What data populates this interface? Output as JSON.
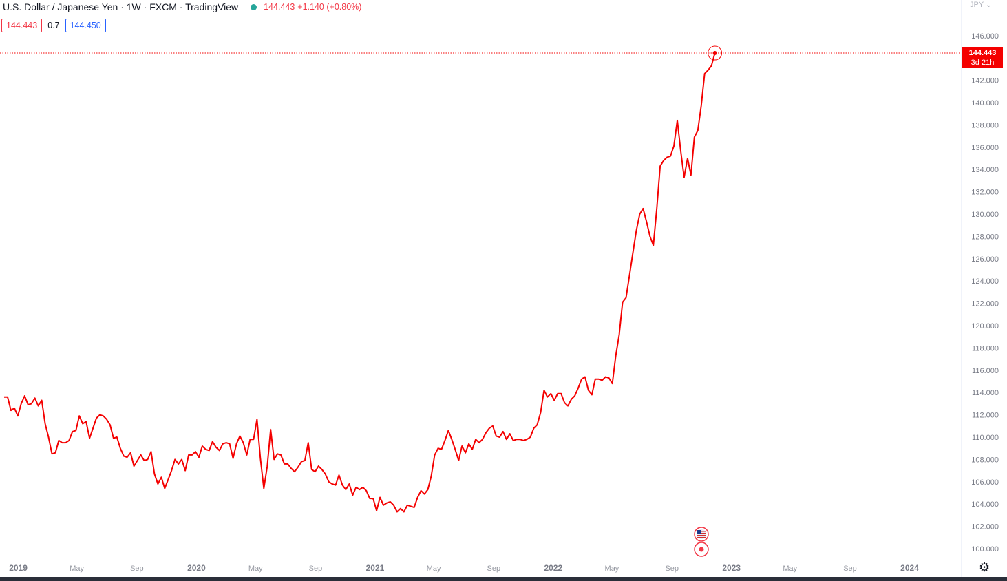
{
  "header": {
    "symbol_title": "U.S. Dollar / Japanese Yen · 1W · FXCM · TradingView",
    "last_price": "144.443",
    "change": "+1.140 (+0.80%)",
    "bid": "144.443",
    "spread": "0.7",
    "ask": "144.450"
  },
  "price_axis": {
    "currency": "JPY",
    "current_price_label": "144.443",
    "countdown_label": "3d 21h"
  },
  "colors": {
    "line": "#f40000",
    "bid": "#f23645",
    "ask": "#2962ff",
    "live_dot": "#26a69a"
  },
  "icons": [
    "us-flag-icon",
    "event-dot-icon",
    "gear-icon"
  ],
  "chart_data": {
    "type": "line",
    "title": "U.S. Dollar / Japanese Yen · 1W · FXCM · TradingView",
    "xlabel": "",
    "ylabel": "",
    "ylim": [
      99,
      147
    ],
    "xlim": [
      "2018-12-03",
      "2024-04-15"
    ],
    "grid": false,
    "y_ticks": [
      "100.000",
      "102.000",
      "104.000",
      "106.000",
      "108.000",
      "110.000",
      "112.000",
      "114.000",
      "116.000",
      "118.000",
      "120.000",
      "122.000",
      "124.000",
      "126.000",
      "128.000",
      "130.000",
      "132.000",
      "134.000",
      "136.000",
      "138.000",
      "140.000",
      "142.000",
      "146.000"
    ],
    "x_ticks": [
      {
        "label": "2019",
        "date": "2019-01-01"
      },
      {
        "label": "May",
        "date": "2019-05-01"
      },
      {
        "label": "Sep",
        "date": "2019-09-01"
      },
      {
        "label": "2020",
        "date": "2020-01-01"
      },
      {
        "label": "May",
        "date": "2020-05-01"
      },
      {
        "label": "Sep",
        "date": "2020-09-01"
      },
      {
        "label": "2021",
        "date": "2021-01-01"
      },
      {
        "label": "May",
        "date": "2021-05-01"
      },
      {
        "label": "Sep",
        "date": "2021-09-01"
      },
      {
        "label": "2022",
        "date": "2022-01-01"
      },
      {
        "label": "May",
        "date": "2022-05-01"
      },
      {
        "label": "Sep",
        "date": "2022-09-01"
      },
      {
        "label": "2023",
        "date": "2023-01-01"
      },
      {
        "label": "May",
        "date": "2023-05-01"
      },
      {
        "label": "Sep",
        "date": "2023-09-01"
      },
      {
        "label": "2024",
        "date": "2024-01-01"
      }
    ],
    "series": [
      {
        "points": [
          [
            "2018-12-03",
            113.6
          ],
          [
            "2018-12-10",
            113.6
          ],
          [
            "2018-12-17",
            112.4
          ],
          [
            "2018-12-24",
            112.6
          ],
          [
            "2018-12-31",
            111.9
          ],
          [
            "2019-01-07",
            113.0
          ],
          [
            "2019-01-14",
            113.7
          ],
          [
            "2019-01-21",
            112.9
          ],
          [
            "2019-01-28",
            113.0
          ],
          [
            "2019-02-04",
            113.5
          ],
          [
            "2019-02-11",
            112.8
          ],
          [
            "2019-02-18",
            113.3
          ],
          [
            "2019-02-25",
            111.2
          ],
          [
            "2019-03-04",
            110.0
          ],
          [
            "2019-03-11",
            108.5
          ],
          [
            "2019-03-18",
            108.6
          ],
          [
            "2019-03-25",
            109.7
          ],
          [
            "2019-04-01",
            109.5
          ],
          [
            "2019-04-08",
            109.5
          ],
          [
            "2019-04-15",
            109.7
          ],
          [
            "2019-04-22",
            110.5
          ],
          [
            "2019-04-29",
            110.6
          ],
          [
            "2019-05-06",
            111.9
          ],
          [
            "2019-05-13",
            111.2
          ],
          [
            "2019-05-20",
            111.4
          ],
          [
            "2019-05-27",
            109.9
          ],
          [
            "2019-06-03",
            110.8
          ],
          [
            "2019-06-10",
            111.7
          ],
          [
            "2019-06-17",
            112.0
          ],
          [
            "2019-06-24",
            111.9
          ],
          [
            "2019-07-01",
            111.6
          ],
          [
            "2019-07-08",
            111.1
          ],
          [
            "2019-07-15",
            109.9
          ],
          [
            "2019-07-22",
            110.0
          ],
          [
            "2019-07-29",
            109.0
          ],
          [
            "2019-08-05",
            108.3
          ],
          [
            "2019-08-12",
            108.2
          ],
          [
            "2019-08-19",
            108.6
          ],
          [
            "2019-08-26",
            107.4
          ],
          [
            "2019-09-02",
            107.9
          ],
          [
            "2019-09-09",
            108.4
          ],
          [
            "2019-09-16",
            107.9
          ],
          [
            "2019-09-23",
            108.0
          ],
          [
            "2019-09-30",
            108.7
          ],
          [
            "2019-10-07",
            106.7
          ],
          [
            "2019-10-14",
            105.8
          ],
          [
            "2019-10-21",
            106.4
          ],
          [
            "2019-10-28",
            105.4
          ],
          [
            "2019-11-04",
            106.2
          ],
          [
            "2019-11-11",
            107.0
          ],
          [
            "2019-11-18",
            108.0
          ],
          [
            "2019-11-25",
            107.6
          ],
          [
            "2019-12-02",
            108.0
          ],
          [
            "2019-12-09",
            107.0
          ],
          [
            "2019-12-16",
            108.4
          ],
          [
            "2019-12-23",
            108.4
          ],
          [
            "2019-12-30",
            108.7
          ],
          [
            "2020-01-06",
            108.2
          ],
          [
            "2020-01-13",
            109.2
          ],
          [
            "2020-01-20",
            108.9
          ],
          [
            "2020-01-27",
            108.8
          ],
          [
            "2020-02-03",
            109.6
          ],
          [
            "2020-02-10",
            109.1
          ],
          [
            "2020-02-17",
            108.8
          ],
          [
            "2020-02-24",
            109.4
          ],
          [
            "2020-03-02",
            109.5
          ],
          [
            "2020-03-09",
            109.4
          ],
          [
            "2020-03-16",
            108.1
          ],
          [
            "2020-03-23",
            109.4
          ],
          [
            "2020-03-30",
            110.1
          ],
          [
            "2020-04-06",
            109.5
          ],
          [
            "2020-04-13",
            108.4
          ],
          [
            "2020-04-20",
            109.8
          ],
          [
            "2020-04-27",
            109.8
          ],
          [
            "2020-05-04",
            111.6
          ],
          [
            "2020-05-11",
            108.1
          ],
          [
            "2020-05-18",
            105.4
          ],
          [
            "2020-05-25",
            107.4
          ],
          [
            "2020-06-01",
            110.7
          ],
          [
            "2020-06-08",
            108.0
          ],
          [
            "2020-06-15",
            108.5
          ],
          [
            "2020-06-22",
            108.4
          ],
          [
            "2020-06-29",
            107.6
          ],
          [
            "2020-07-06",
            107.6
          ],
          [
            "2020-07-13",
            107.2
          ],
          [
            "2020-07-20",
            106.9
          ],
          [
            "2020-07-27",
            107.3
          ],
          [
            "2020-08-03",
            107.8
          ],
          [
            "2020-08-10",
            107.9
          ],
          [
            "2020-08-17",
            109.5
          ],
          [
            "2020-08-24",
            107.1
          ],
          [
            "2020-08-31",
            106.9
          ],
          [
            "2020-09-07",
            107.4
          ],
          [
            "2020-09-14",
            107.1
          ],
          [
            "2020-09-21",
            106.7
          ],
          [
            "2020-09-28",
            106.0
          ],
          [
            "2020-10-05",
            105.8
          ],
          [
            "2020-10-12",
            105.7
          ],
          [
            "2020-10-19",
            106.6
          ],
          [
            "2020-10-26",
            105.7
          ],
          [
            "2020-11-02",
            105.3
          ],
          [
            "2020-11-09",
            105.8
          ],
          [
            "2020-11-16",
            104.8
          ],
          [
            "2020-11-23",
            105.5
          ],
          [
            "2020-11-30",
            105.3
          ],
          [
            "2020-12-07",
            105.5
          ],
          [
            "2020-12-14",
            105.2
          ],
          [
            "2020-12-21",
            104.5
          ],
          [
            "2020-12-28",
            104.5
          ],
          [
            "2021-01-04",
            103.4
          ],
          [
            "2021-01-11",
            104.6
          ],
          [
            "2021-01-18",
            103.9
          ],
          [
            "2021-01-25",
            104.1
          ],
          [
            "2021-02-01",
            104.2
          ],
          [
            "2021-02-08",
            103.9
          ],
          [
            "2021-02-15",
            103.3
          ],
          [
            "2021-02-22",
            103.6
          ],
          [
            "2021-03-01",
            103.3
          ],
          [
            "2021-03-08",
            103.9
          ],
          [
            "2021-03-15",
            103.8
          ],
          [
            "2021-03-22",
            103.7
          ],
          [
            "2021-03-29",
            104.6
          ],
          [
            "2021-04-05",
            105.2
          ],
          [
            "2021-04-12",
            104.9
          ],
          [
            "2021-04-19",
            105.3
          ],
          [
            "2021-04-26",
            106.5
          ],
          [
            "2021-05-03",
            108.4
          ],
          [
            "2021-05-10",
            109.0
          ],
          [
            "2021-05-17",
            108.9
          ],
          [
            "2021-05-24",
            109.7
          ],
          [
            "2021-05-31",
            110.6
          ],
          [
            "2021-06-07",
            109.8
          ],
          [
            "2021-06-14",
            108.9
          ],
          [
            "2021-06-21",
            107.9
          ],
          [
            "2021-06-28",
            109.2
          ],
          [
            "2021-07-05",
            108.6
          ],
          [
            "2021-07-12",
            109.4
          ],
          [
            "2021-07-19",
            108.9
          ],
          [
            "2021-07-26",
            109.8
          ],
          [
            "2021-08-02",
            109.5
          ],
          [
            "2021-08-09",
            109.8
          ],
          [
            "2021-08-16",
            110.4
          ],
          [
            "2021-08-23",
            110.8
          ],
          [
            "2021-08-30",
            111.0
          ],
          [
            "2021-09-06",
            110.1
          ],
          [
            "2021-09-13",
            110.0
          ],
          [
            "2021-09-20",
            110.5
          ],
          [
            "2021-09-27",
            109.8
          ],
          [
            "2021-10-04",
            110.3
          ],
          [
            "2021-10-11",
            109.7
          ],
          [
            "2021-10-18",
            109.8
          ],
          [
            "2021-10-25",
            109.8
          ],
          [
            "2021-11-01",
            109.7
          ],
          [
            "2021-11-08",
            109.8
          ],
          [
            "2021-11-15",
            110.0
          ],
          [
            "2021-11-22",
            110.8
          ],
          [
            "2021-11-29",
            111.1
          ],
          [
            "2021-12-06",
            112.2
          ],
          [
            "2021-12-13",
            114.2
          ],
          [
            "2021-12-20",
            113.6
          ],
          [
            "2021-12-27",
            113.9
          ],
          [
            "2022-01-03",
            113.3
          ],
          [
            "2022-01-10",
            113.9
          ],
          [
            "2022-01-17",
            113.9
          ],
          [
            "2022-01-24",
            113.1
          ],
          [
            "2022-01-31",
            112.8
          ],
          [
            "2022-02-07",
            113.4
          ],
          [
            "2022-02-14",
            113.7
          ],
          [
            "2022-02-21",
            114.4
          ],
          [
            "2022-02-28",
            115.2
          ],
          [
            "2022-03-07",
            115.4
          ],
          [
            "2022-03-14",
            114.2
          ],
          [
            "2022-03-21",
            113.8
          ],
          [
            "2022-03-28",
            115.2
          ],
          [
            "2022-04-04",
            115.2
          ],
          [
            "2022-04-11",
            115.1
          ],
          [
            "2022-04-18",
            115.4
          ],
          [
            "2022-04-25",
            115.3
          ],
          [
            "2022-05-02",
            114.8
          ],
          [
            "2022-05-09",
            117.3
          ],
          [
            "2022-05-16",
            119.2
          ],
          [
            "2022-05-23",
            122.1
          ],
          [
            "2022-05-30",
            122.5
          ],
          [
            "2022-06-06",
            124.5
          ],
          [
            "2022-06-13",
            126.5
          ],
          [
            "2022-06-20",
            128.5
          ],
          [
            "2022-06-27",
            130.0
          ],
          [
            "2022-07-04",
            130.5
          ],
          [
            "2022-07-11",
            129.3
          ],
          [
            "2022-07-18",
            128.0
          ],
          [
            "2022-07-25",
            127.2
          ],
          [
            "2022-08-01",
            130.5
          ],
          [
            "2022-08-08",
            134.3
          ],
          [
            "2022-08-15",
            134.8
          ],
          [
            "2022-08-22",
            135.1
          ],
          [
            "2022-08-29",
            135.2
          ],
          [
            "2022-09-05",
            136.1
          ],
          [
            "2022-09-12",
            138.4
          ],
          [
            "2022-09-19",
            135.7
          ],
          [
            "2022-09-26",
            133.3
          ],
          [
            "2022-10-03",
            135.0
          ],
          [
            "2022-10-10",
            133.5
          ],
          [
            "2022-10-17",
            136.9
          ],
          [
            "2022-10-24",
            137.5
          ],
          [
            "2022-10-31",
            139.7
          ],
          [
            "2022-11-07",
            142.6
          ],
          [
            "2022-11-14",
            142.9
          ],
          [
            "2022-11-21",
            143.3
          ],
          [
            "2022-11-28",
            144.443
          ]
        ]
      }
    ],
    "annotations": [
      "144.443",
      "3d 21h"
    ]
  }
}
